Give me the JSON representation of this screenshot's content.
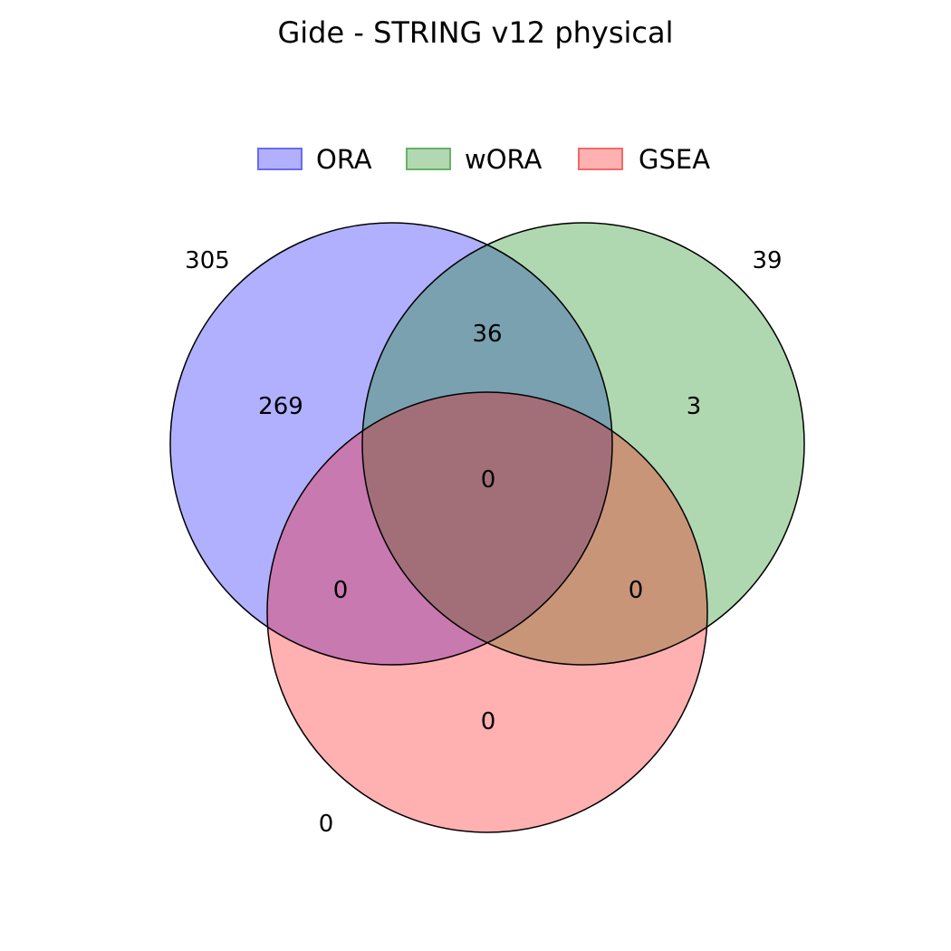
{
  "title": "Gide - STRING v12 physical",
  "legend": [
    {
      "label": "ORA",
      "fill": "#b0b0fc",
      "edge": "#6a6af2"
    },
    {
      "label": "wORA",
      "fill": "#b2d8b2",
      "edge": "#66b366"
    },
    {
      "label": "GSEA",
      "fill": "#ffb0b0",
      "edge": "#f26a6a"
    }
  ],
  "sets": [
    {
      "name": "ORA",
      "total": "305",
      "color": "#0000ff"
    },
    {
      "name": "wORA",
      "total": "39",
      "color": "#008000"
    },
    {
      "name": "GSEA",
      "total": "0",
      "color": "#ff0000"
    }
  ],
  "regions": {
    "ora_only": "269",
    "wora_only": "3",
    "gsea_only": "0",
    "ora_wora": "36",
    "ora_gsea": "0",
    "wora_gsea": "0",
    "all_three": "0"
  }
}
